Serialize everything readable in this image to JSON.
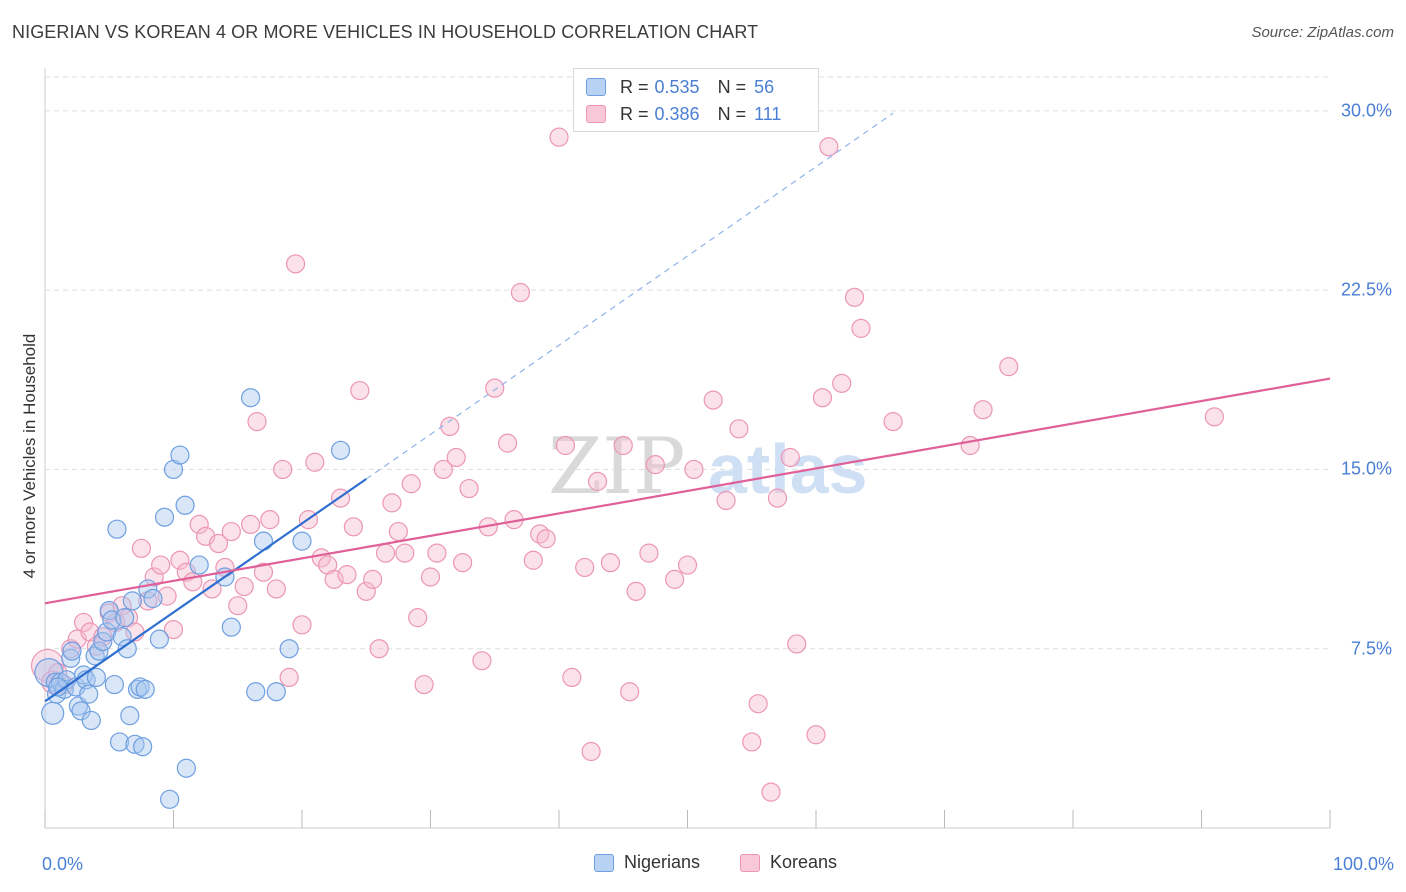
{
  "title": "NIGERIAN VS KOREAN 4 OR MORE VEHICLES IN HOUSEHOLD CORRELATION CHART",
  "source": "Source: ZipAtlas.com",
  "watermark": {
    "zip": "ZIP",
    "atlas": "atlas"
  },
  "legend": {
    "rows": [
      {
        "r_label": "R =",
        "r_value": "0.535",
        "n_label": "N =",
        "n_value": "56"
      },
      {
        "r_label": "R =",
        "r_value": "0.386",
        "n_label": "N =",
        "n_value": "111"
      }
    ]
  },
  "bottom_legend": {
    "nigerians": "Nigerians",
    "koreans": "Koreans"
  },
  "chart_data": {
    "type": "scatter",
    "title": "NIGERIAN VS KOREAN 4 OR MORE VEHICLES IN HOUSEHOLD CORRELATION CHART",
    "xlabel": "",
    "ylabel": "4 or more Vehicles in Household",
    "xlim": [
      0,
      100
    ],
    "ylim": [
      0,
      31.5
    ],
    "y_ticks": [
      {
        "value": 7.5,
        "label": "7.5%"
      },
      {
        "value": 15.0,
        "label": "15.0%"
      },
      {
        "value": 22.5,
        "label": "22.5%"
      },
      {
        "value": 30.0,
        "label": "30.0%"
      }
    ],
    "x_tick_labels": {
      "left": "0.0%",
      "right": "100.0%"
    },
    "x_minor_ticks": [
      0,
      10,
      20,
      30,
      40,
      50,
      60,
      70,
      80,
      90,
      100
    ],
    "grid": true,
    "colors": {
      "nigerians_fill": "#a9c8f0",
      "nigerians_stroke": "#6e9fe0",
      "nigerians_line": "#2f6fd0",
      "koreans_fill": "#f6bcd0",
      "koreans_stroke": "#ec96b4",
      "koreans_line": "#e0609a",
      "axis_text": "#4a7fd4",
      "grid": "#dddddd"
    },
    "series": [
      {
        "name": "Nigerians",
        "r": 0.535,
        "n": 56,
        "trend": {
          "x0": 0,
          "y0": 5.3,
          "x1": 25,
          "y1": 14.6,
          "dash_to_x": 66,
          "dash_to_y": 29.9
        },
        "points": [
          [
            0.3,
            6.5,
            14
          ],
          [
            0.6,
            4.8,
            11
          ],
          [
            0.8,
            6.1,
            9
          ],
          [
            0.9,
            5.6,
            9
          ],
          [
            1.2,
            6.1,
            9
          ],
          [
            1.5,
            5.8,
            9
          ],
          [
            1.7,
            6.2,
            9
          ],
          [
            2.0,
            7.1,
            9
          ],
          [
            2.1,
            7.4,
            9
          ],
          [
            2.4,
            5.9,
            9
          ],
          [
            2.6,
            5.1,
            9
          ],
          [
            2.8,
            4.9,
            9
          ],
          [
            3.0,
            6.4,
            9
          ],
          [
            3.2,
            6.2,
            9
          ],
          [
            3.4,
            5.6,
            9
          ],
          [
            3.6,
            4.5,
            9
          ],
          [
            3.9,
            7.2,
            9
          ],
          [
            4.2,
            7.4,
            9
          ],
          [
            4.5,
            7.8,
            9
          ],
          [
            4.8,
            8.2,
            9
          ],
          [
            5.0,
            9.1,
            9
          ],
          [
            5.2,
            8.7,
            9
          ],
          [
            5.4,
            6.0,
            9
          ],
          [
            5.6,
            12.5,
            9
          ],
          [
            5.8,
            3.6,
            9
          ],
          [
            6.0,
            8.0,
            9
          ],
          [
            6.2,
            8.8,
            9
          ],
          [
            6.4,
            7.5,
            9
          ],
          [
            6.6,
            4.7,
            9
          ],
          [
            6.8,
            9.5,
            9
          ],
          [
            7.0,
            3.5,
            9
          ],
          [
            7.2,
            5.8,
            9
          ],
          [
            7.4,
            5.9,
            9
          ],
          [
            7.6,
            3.4,
            9
          ],
          [
            7.8,
            5.8,
            9
          ],
          [
            8.0,
            10.0,
            9
          ],
          [
            8.4,
            9.6,
            9
          ],
          [
            8.9,
            7.9,
            9
          ],
          [
            9.3,
            13.0,
            9
          ],
          [
            9.7,
            1.2,
            9
          ],
          [
            10.0,
            15.0,
            9
          ],
          [
            10.5,
            15.6,
            9
          ],
          [
            10.9,
            13.5,
            9
          ],
          [
            11.0,
            2.5,
            9
          ],
          [
            12.0,
            11.0,
            9
          ],
          [
            14.0,
            10.5,
            9
          ],
          [
            14.5,
            8.4,
            9
          ],
          [
            16.0,
            18.0,
            9
          ],
          [
            16.4,
            5.7,
            9
          ],
          [
            17.0,
            12.0,
            9
          ],
          [
            18.0,
            5.7,
            9
          ],
          [
            19.0,
            7.5,
            9
          ],
          [
            20.0,
            12.0,
            9
          ],
          [
            23.0,
            15.8,
            9
          ],
          [
            1.0,
            5.9,
            9
          ],
          [
            4.0,
            6.3,
            9
          ]
        ]
      },
      {
        "name": "Koreans",
        "r": 0.386,
        "n": 111,
        "trend": {
          "x0": 0,
          "y0": 9.4,
          "x1": 100,
          "y1": 18.8
        },
        "points": [
          [
            0.2,
            6.8,
            16
          ],
          [
            0.6,
            6.1,
            11
          ],
          [
            1.0,
            6.5,
            9
          ],
          [
            1.5,
            6.0,
            9
          ],
          [
            2.0,
            7.5,
            9
          ],
          [
            2.5,
            7.9,
            9
          ],
          [
            3.0,
            8.6,
            9
          ],
          [
            3.5,
            8.2,
            9
          ],
          [
            4.0,
            7.6,
            9
          ],
          [
            4.5,
            8.0,
            9
          ],
          [
            5.0,
            9.0,
            9
          ],
          [
            5.5,
            8.6,
            9
          ],
          [
            6.0,
            9.3,
            9
          ],
          [
            6.5,
            8.8,
            9
          ],
          [
            7.0,
            8.2,
            9
          ],
          [
            7.5,
            11.7,
            9
          ],
          [
            8.0,
            9.5,
            9
          ],
          [
            8.5,
            10.5,
            9
          ],
          [
            9.0,
            11.0,
            9
          ],
          [
            9.5,
            9.7,
            9
          ],
          [
            10.0,
            8.3,
            9
          ],
          [
            10.5,
            11.2,
            9
          ],
          [
            11.0,
            10.7,
            9
          ],
          [
            11.5,
            10.3,
            9
          ],
          [
            12.0,
            12.7,
            9
          ],
          [
            12.5,
            12.2,
            9
          ],
          [
            13.0,
            10.0,
            9
          ],
          [
            13.5,
            11.9,
            9
          ],
          [
            14.0,
            10.9,
            9
          ],
          [
            14.5,
            12.4,
            9
          ],
          [
            15.0,
            9.3,
            9
          ],
          [
            15.5,
            10.1,
            9
          ],
          [
            16.0,
            12.7,
            9
          ],
          [
            16.5,
            17.0,
            9
          ],
          [
            17.0,
            10.7,
            9
          ],
          [
            17.5,
            12.9,
            9
          ],
          [
            18.0,
            10.0,
            9
          ],
          [
            18.5,
            15.0,
            9
          ],
          [
            19.0,
            6.3,
            9
          ],
          [
            19.5,
            23.6,
            9
          ],
          [
            20.0,
            8.5,
            9
          ],
          [
            20.5,
            12.9,
            9
          ],
          [
            21.0,
            15.3,
            9
          ],
          [
            21.5,
            11.3,
            9
          ],
          [
            22.0,
            11.0,
            9
          ],
          [
            22.5,
            10.4,
            9
          ],
          [
            23.0,
            13.8,
            9
          ],
          [
            23.5,
            10.6,
            9
          ],
          [
            24.0,
            12.6,
            9
          ],
          [
            24.5,
            18.3,
            9
          ],
          [
            25.0,
            9.9,
            9
          ],
          [
            25.5,
            10.4,
            9
          ],
          [
            26.0,
            7.5,
            9
          ],
          [
            26.5,
            11.5,
            9
          ],
          [
            27.0,
            13.6,
            9
          ],
          [
            27.5,
            12.4,
            9
          ],
          [
            28.0,
            11.5,
            9
          ],
          [
            28.5,
            14.4,
            9
          ],
          [
            29.0,
            8.8,
            9
          ],
          [
            29.5,
            6.0,
            9
          ],
          [
            30.0,
            10.5,
            9
          ],
          [
            30.5,
            11.5,
            9
          ],
          [
            31.0,
            15.0,
            9
          ],
          [
            31.5,
            16.8,
            9
          ],
          [
            32.0,
            15.5,
            9
          ],
          [
            32.5,
            11.1,
            9
          ],
          [
            33.0,
            14.2,
            9
          ],
          [
            34.0,
            7.0,
            9
          ],
          [
            34.5,
            12.6,
            9
          ],
          [
            35.0,
            18.4,
            9
          ],
          [
            36.0,
            16.1,
            9
          ],
          [
            36.5,
            12.9,
            9
          ],
          [
            37.0,
            22.4,
            9
          ],
          [
            38.0,
            11.2,
            9
          ],
          [
            38.5,
            12.3,
            9
          ],
          [
            39.0,
            12.1,
            9
          ],
          [
            40.0,
            28.9,
            9
          ],
          [
            40.5,
            16.0,
            9
          ],
          [
            41.0,
            6.3,
            9
          ],
          [
            42.0,
            10.9,
            9
          ],
          [
            42.5,
            3.2,
            9
          ],
          [
            43.0,
            14.5,
            9
          ],
          [
            44.0,
            11.1,
            9
          ],
          [
            45.0,
            16.0,
            9
          ],
          [
            45.5,
            5.7,
            9
          ],
          [
            46.0,
            9.9,
            9
          ],
          [
            47.0,
            11.5,
            9
          ],
          [
            47.5,
            15.2,
            9
          ],
          [
            49.0,
            10.4,
            9
          ],
          [
            50.0,
            11.0,
            9
          ],
          [
            50.5,
            15.0,
            9
          ],
          [
            52.0,
            17.9,
            9
          ],
          [
            53.0,
            13.7,
            9
          ],
          [
            54.0,
            16.7,
            9
          ],
          [
            55.0,
            3.6,
            9
          ],
          [
            55.5,
            5.2,
            9
          ],
          [
            56.5,
            1.5,
            9
          ],
          [
            57.0,
            13.8,
            9
          ],
          [
            58.0,
            15.5,
            9
          ],
          [
            58.5,
            7.7,
            9
          ],
          [
            60.0,
            3.9,
            9
          ],
          [
            60.5,
            18.0,
            9
          ],
          [
            61.0,
            28.5,
            9
          ],
          [
            62.0,
            18.6,
            9
          ],
          [
            63.0,
            22.2,
            9
          ],
          [
            63.5,
            20.9,
            9
          ],
          [
            66.0,
            17.0,
            9
          ],
          [
            72.0,
            16.0,
            9
          ],
          [
            73.0,
            17.5,
            9
          ],
          [
            75.0,
            19.3,
            9
          ],
          [
            91.0,
            17.2,
            9
          ]
        ]
      }
    ]
  }
}
